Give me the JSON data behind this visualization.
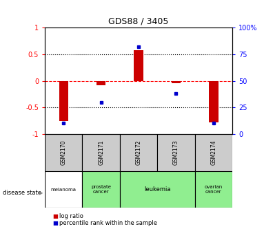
{
  "title": "GDS88 / 3405",
  "samples": [
    "GSM2170",
    "GSM2171",
    "GSM2172",
    "GSM2173",
    "GSM2174"
  ],
  "log_ratios": [
    -0.75,
    -0.08,
    0.58,
    -0.04,
    -0.78
  ],
  "percentile_ranks": [
    10,
    30,
    82,
    38,
    10
  ],
  "disease_states": [
    "melanoma",
    "prostate cancer",
    "leukemia",
    "leukemia",
    "ovarian cancer"
  ],
  "disease_color_map": {
    "melanoma": "#ffffff",
    "prostate cancer": "#90ee90",
    "leukemia": "#90ee90",
    "ovarian cancer": "#90ee90"
  },
  "bar_color": "#cc0000",
  "dot_color": "#0000cc",
  "sample_box_color": "#cccccc",
  "bar_width": 0.25,
  "legend_label_log": "log ratio",
  "legend_label_pct": "percentile rank within the sample",
  "disease_label": "disease state"
}
